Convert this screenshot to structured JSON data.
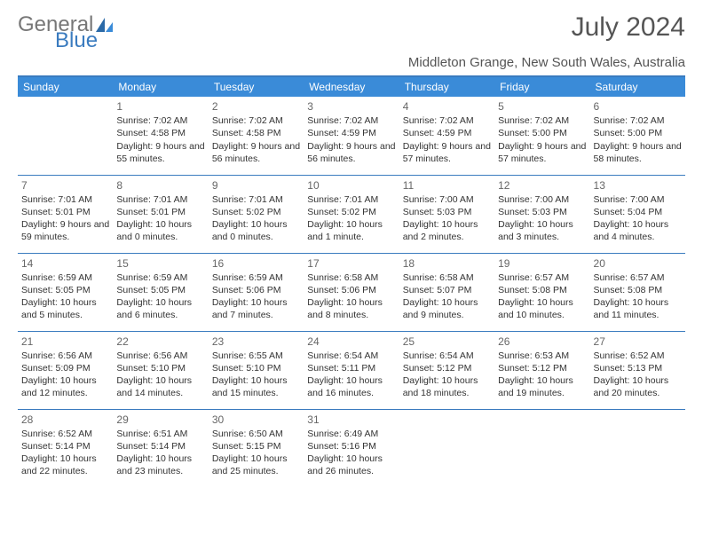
{
  "logo": {
    "text1": "General",
    "text2": "Blue"
  },
  "title": "July 2024",
  "location": "Middleton Grange, New South Wales, Australia",
  "colors": {
    "header_bg": "#3a8bd8",
    "header_text": "#ffffff",
    "border": "#3a7bbf",
    "text": "#333333",
    "logo_blue": "#3a7bbf"
  },
  "weekdays": [
    "Sunday",
    "Monday",
    "Tuesday",
    "Wednesday",
    "Thursday",
    "Friday",
    "Saturday"
  ],
  "weeks": [
    [
      null,
      {
        "n": "1",
        "sr": "7:02 AM",
        "ss": "4:58 PM",
        "dl": "9 hours and 55 minutes."
      },
      {
        "n": "2",
        "sr": "7:02 AM",
        "ss": "4:58 PM",
        "dl": "9 hours and 56 minutes."
      },
      {
        "n": "3",
        "sr": "7:02 AM",
        "ss": "4:59 PM",
        "dl": "9 hours and 56 minutes."
      },
      {
        "n": "4",
        "sr": "7:02 AM",
        "ss": "4:59 PM",
        "dl": "9 hours and 57 minutes."
      },
      {
        "n": "5",
        "sr": "7:02 AM",
        "ss": "5:00 PM",
        "dl": "9 hours and 57 minutes."
      },
      {
        "n": "6",
        "sr": "7:02 AM",
        "ss": "5:00 PM",
        "dl": "9 hours and 58 minutes."
      }
    ],
    [
      {
        "n": "7",
        "sr": "7:01 AM",
        "ss": "5:01 PM",
        "dl": "9 hours and 59 minutes."
      },
      {
        "n": "8",
        "sr": "7:01 AM",
        "ss": "5:01 PM",
        "dl": "10 hours and 0 minutes."
      },
      {
        "n": "9",
        "sr": "7:01 AM",
        "ss": "5:02 PM",
        "dl": "10 hours and 0 minutes."
      },
      {
        "n": "10",
        "sr": "7:01 AM",
        "ss": "5:02 PM",
        "dl": "10 hours and 1 minute."
      },
      {
        "n": "11",
        "sr": "7:00 AM",
        "ss": "5:03 PM",
        "dl": "10 hours and 2 minutes."
      },
      {
        "n": "12",
        "sr": "7:00 AM",
        "ss": "5:03 PM",
        "dl": "10 hours and 3 minutes."
      },
      {
        "n": "13",
        "sr": "7:00 AM",
        "ss": "5:04 PM",
        "dl": "10 hours and 4 minutes."
      }
    ],
    [
      {
        "n": "14",
        "sr": "6:59 AM",
        "ss": "5:05 PM",
        "dl": "10 hours and 5 minutes."
      },
      {
        "n": "15",
        "sr": "6:59 AM",
        "ss": "5:05 PM",
        "dl": "10 hours and 6 minutes."
      },
      {
        "n": "16",
        "sr": "6:59 AM",
        "ss": "5:06 PM",
        "dl": "10 hours and 7 minutes."
      },
      {
        "n": "17",
        "sr": "6:58 AM",
        "ss": "5:06 PM",
        "dl": "10 hours and 8 minutes."
      },
      {
        "n": "18",
        "sr": "6:58 AM",
        "ss": "5:07 PM",
        "dl": "10 hours and 9 minutes."
      },
      {
        "n": "19",
        "sr": "6:57 AM",
        "ss": "5:08 PM",
        "dl": "10 hours and 10 minutes."
      },
      {
        "n": "20",
        "sr": "6:57 AM",
        "ss": "5:08 PM",
        "dl": "10 hours and 11 minutes."
      }
    ],
    [
      {
        "n": "21",
        "sr": "6:56 AM",
        "ss": "5:09 PM",
        "dl": "10 hours and 12 minutes."
      },
      {
        "n": "22",
        "sr": "6:56 AM",
        "ss": "5:10 PM",
        "dl": "10 hours and 14 minutes."
      },
      {
        "n": "23",
        "sr": "6:55 AM",
        "ss": "5:10 PM",
        "dl": "10 hours and 15 minutes."
      },
      {
        "n": "24",
        "sr": "6:54 AM",
        "ss": "5:11 PM",
        "dl": "10 hours and 16 minutes."
      },
      {
        "n": "25",
        "sr": "6:54 AM",
        "ss": "5:12 PM",
        "dl": "10 hours and 18 minutes."
      },
      {
        "n": "26",
        "sr": "6:53 AM",
        "ss": "5:12 PM",
        "dl": "10 hours and 19 minutes."
      },
      {
        "n": "27",
        "sr": "6:52 AM",
        "ss": "5:13 PM",
        "dl": "10 hours and 20 minutes."
      }
    ],
    [
      {
        "n": "28",
        "sr": "6:52 AM",
        "ss": "5:14 PM",
        "dl": "10 hours and 22 minutes."
      },
      {
        "n": "29",
        "sr": "6:51 AM",
        "ss": "5:14 PM",
        "dl": "10 hours and 23 minutes."
      },
      {
        "n": "30",
        "sr": "6:50 AM",
        "ss": "5:15 PM",
        "dl": "10 hours and 25 minutes."
      },
      {
        "n": "31",
        "sr": "6:49 AM",
        "ss": "5:16 PM",
        "dl": "10 hours and 26 minutes."
      },
      null,
      null,
      null
    ]
  ],
  "labels": {
    "sunrise": "Sunrise: ",
    "sunset": "Sunset: ",
    "daylight": "Daylight: "
  }
}
